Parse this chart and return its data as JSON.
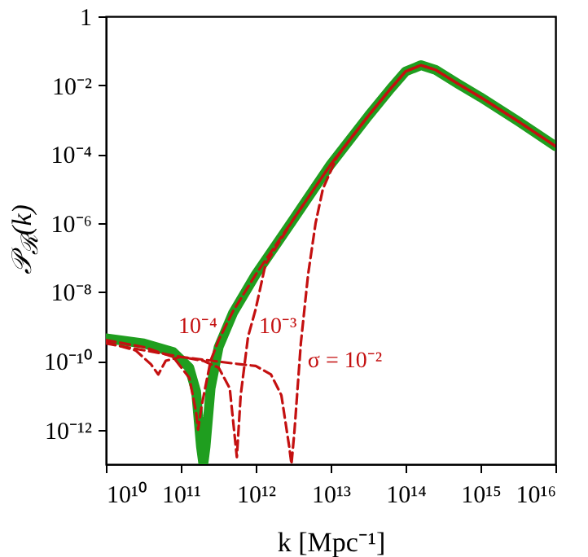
{
  "chart_data": {
    "type": "line",
    "xlabel": "k   [Mpc⁻¹]",
    "ylabel": "𝒫$_{ℛ}$(k)",
    "log": "xy",
    "grid": false,
    "xlim": [
      10000000000.0,
      1e+16
    ],
    "xticks": [
      {
        "value": 10000000000.0,
        "label": "10¹⁰"
      },
      {
        "value": 100000000000.0,
        "label": "10¹¹"
      },
      {
        "value": 1000000000000.0,
        "label": "10¹²"
      },
      {
        "value": 10000000000000.0,
        "label": "10¹³"
      },
      {
        "value": 100000000000000.0,
        "label": "10¹⁴"
      },
      {
        "value": 1000000000000000.0,
        "label": "10¹⁵"
      },
      {
        "value": 1e+16,
        "label": "10¹⁶"
      }
    ],
    "ylim": [
      1e-13,
      1
    ],
    "yticks": [
      1,
      {
        "value": 0.01,
        "label": "10⁻²"
      },
      {
        "value": 0.0001,
        "label": "10⁻⁴"
      },
      {
        "value": 1e-06,
        "label": "10⁻⁶"
      },
      {
        "value": 1e-08,
        "label": "10⁻⁸"
      },
      {
        "value": 1e-10,
        "label": "10⁻¹⁰"
      },
      {
        "value": 1e-12,
        "label": "10⁻¹²"
      }
    ],
    "series": [
      {
        "color": "#1f9e1f",
        "line_style": "solid",
        "x": [
          10000000000.0,
          32000000000.0,
          79000000000.0,
          130000000000.0,
          160000000000.0,
          186000000000.0,
          200000000000.0,
          214000000000.0,
          250000000000.0,
          320000000000.0,
          500000000000.0,
          1000000000000.0,
          3200000000000.0,
          10000000000000.0,
          32000000000000.0,
          63000000000000.0,
          100000000000000.0,
          160000000000000.0,
          250000000000000.0,
          500000000000000.0,
          1000000000000000.0,
          3200000000000000.0,
          1e+16
        ],
        "values": [
          4.5e-10,
          3.2e-10,
          1.8e-10,
          6.3e-11,
          1.3e-11,
          3.2e-13,
          1e-13,
          3.2e-13,
          1.6e-11,
          2.5e-10,
          2.5e-09,
          3.2e-08,
          1.3e-06,
          5e-05,
          0.0013,
          0.0079,
          0.025,
          0.038,
          0.028,
          0.011,
          0.0045,
          0.00089,
          0.00017
        ]
      },
      {
        "name": "10⁻⁴",
        "color": "#c41010",
        "line_style": "dashed",
        "x": [
          10000000000.0,
          32000000000.0,
          79000000000.0,
          130000000000.0,
          160000000000.0,
          170000000000.0,
          190000000000.0,
          250000000000.0,
          320000000000.0,
          500000000000.0,
          1000000000000.0,
          3200000000000.0,
          10000000000000.0,
          32000000000000.0,
          63000000000000.0,
          100000000000000.0,
          160000000000000.0,
          250000000000000.0,
          500000000000000.0,
          1000000000000000.0,
          3200000000000000.0,
          1e+16
        ],
        "values": [
          4e-10,
          2.5e-10,
          1.3e-10,
          3.2e-11,
          3.2e-12,
          1e-12,
          5e-12,
          1e-10,
          4e-10,
          2.8e-09,
          3.2e-08,
          1.3e-06,
          5e-05,
          0.0013,
          0.0079,
          0.025,
          0.038,
          0.028,
          0.011,
          0.0045,
          0.00089,
          0.00017
        ]
      },
      {
        "name": "10⁻³",
        "color": "#c41010",
        "line_style": "dashed",
        "x": [
          10000000000.0,
          25000000000.0,
          40000000000.0,
          50000000000.0,
          63000000000.0,
          100000000000.0,
          200000000000.0,
          320000000000.0,
          450000000000.0,
          560000000000.0,
          630000000000.0,
          790000000000.0,
          1000000000000.0,
          1350000000000.0,
          3200000000000.0,
          10000000000000.0,
          32000000000000.0,
          63000000000000.0,
          100000000000000.0,
          160000000000000.0,
          250000000000000.0,
          500000000000000.0,
          1000000000000000.0,
          3200000000000000.0,
          1e+16
        ],
        "values": [
          3.5e-10,
          2e-10,
          7.9e-11,
          4e-11,
          1e-10,
          1.3e-10,
          1e-10,
          6.3e-11,
          1.6e-11,
          1.6e-13,
          1e-11,
          5e-10,
          3.2e-09,
          6.3e-08,
          1.3e-06,
          5e-05,
          0.0013,
          0.0079,
          0.025,
          0.038,
          0.028,
          0.011,
          0.0045,
          0.00089,
          0.00017
        ]
      },
      {
        "name": "σ = 10⁻²",
        "color": "#c41010",
        "line_style": "dashed",
        "x": [
          10000000000.0,
          100000000000.0,
          630000000000.0,
          1000000000000.0,
          1600000000000.0,
          2200000000000.0,
          2800000000000.0,
          3000000000000.0,
          3300000000000.0,
          4000000000000.0,
          5000000000000.0,
          6300000000000.0,
          7900000000000.0,
          12000000000000.0,
          20000000000000.0,
          32000000000000.0,
          63000000000000.0,
          100000000000000.0,
          160000000000000.0,
          250000000000000.0,
          500000000000000.0,
          1000000000000000.0,
          3200000000000000.0,
          1e+16
        ],
        "values": [
          3.2e-10,
          1.3e-10,
          7.9e-11,
          7.1e-11,
          4e-11,
          1e-11,
          3.2e-13,
          1e-13,
          1e-12,
          3.2e-10,
          3.2e-08,
          1e-06,
          1e-05,
          7.9e-05,
          0.00035,
          0.0013,
          0.0079,
          0.025,
          0.038,
          0.028,
          0.011,
          0.0045,
          0.00089,
          0.00017
        ]
      }
    ]
  }
}
